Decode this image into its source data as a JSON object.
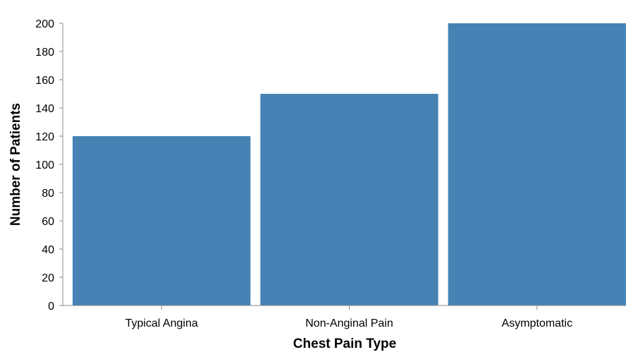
{
  "chart_data": {
    "type": "bar",
    "categories": [
      "Typical Angina",
      "Non-Anginal Pain",
      "Asymptomatic"
    ],
    "values": [
      120,
      150,
      200
    ],
    "title": "",
    "xlabel": "Chest Pain Type",
    "ylabel": "Number of Patients",
    "ylim": [
      0,
      200
    ],
    "yticks": [
      0,
      20,
      40,
      60,
      80,
      100,
      120,
      140,
      160,
      180,
      200
    ],
    "grid": false,
    "bar_color": "#4682b4"
  }
}
